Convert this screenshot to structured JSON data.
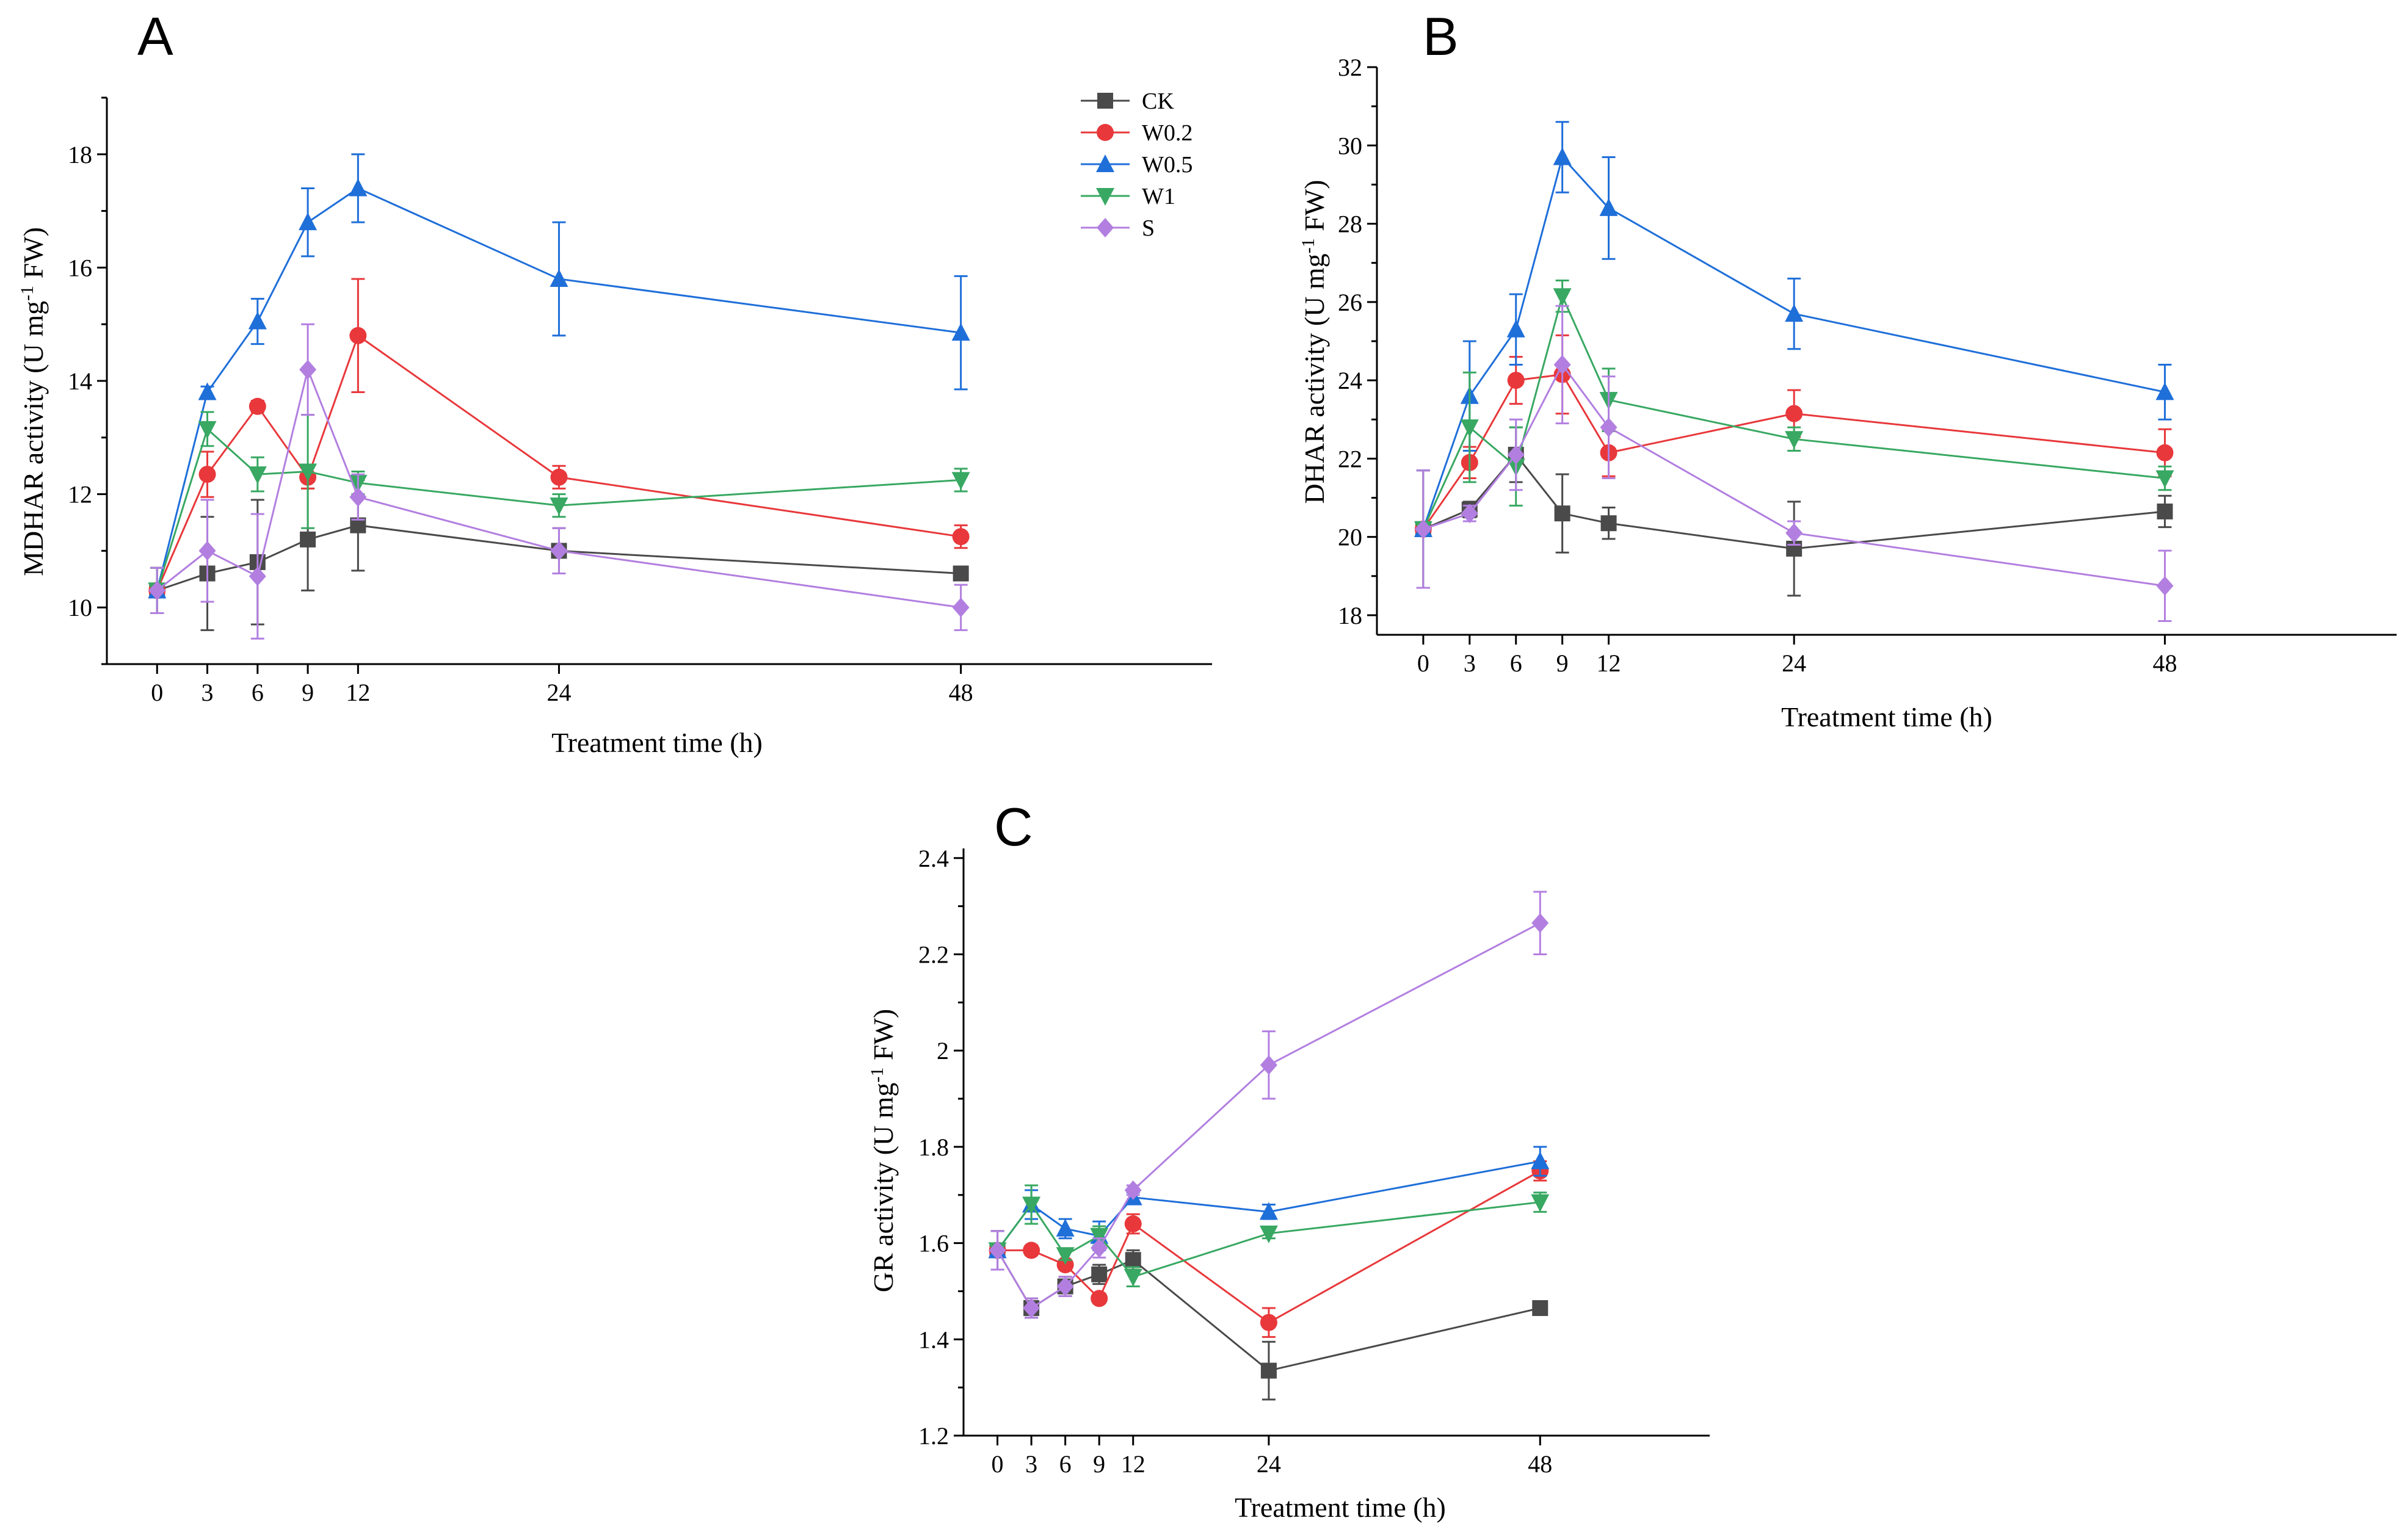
{
  "figure": {
    "series_colors": {
      "CK": "#4a4a4a",
      "W0.2": "#e8383b",
      "W0.5": "#1f6fd9",
      "W1": "#38a862",
      "S": "#b27fe0"
    },
    "legend": [
      {
        "name": "CK",
        "marker": "square"
      },
      {
        "name": "W0.2",
        "marker": "circle"
      },
      {
        "name": "W0.5",
        "marker": "triangle-up"
      },
      {
        "name": "W1",
        "marker": "triangle-down"
      },
      {
        "name": "S",
        "marker": "diamond"
      }
    ]
  },
  "chart_data": [
    {
      "panel": "A",
      "type": "line",
      "xlabel": "Treatment time (h)",
      "ylabel": "MDHAR activity (U mg-1 FW)",
      "x": [
        0,
        3,
        6,
        9,
        12,
        24,
        48
      ],
      "xticks": [
        "0",
        "3",
        "6",
        "9",
        "12",
        "24",
        "48"
      ],
      "xlim": [
        -3,
        63
      ],
      "ylim": [
        9,
        19
      ],
      "yticks": [
        10,
        12,
        14,
        16,
        18
      ],
      "series": [
        {
          "name": "CK",
          "values": [
            10.3,
            10.6,
            10.8,
            11.2,
            11.45,
            11.0,
            10.6
          ],
          "errors": [
            0.4,
            1.0,
            1.1,
            0.9,
            0.8,
            0.4,
            0.0
          ]
        },
        {
          "name": "W0.2",
          "values": [
            10.3,
            12.35,
            13.55,
            12.3,
            14.8,
            12.3,
            11.25
          ],
          "errors": [
            0.4,
            0.4,
            0.1,
            0.2,
            1.0,
            0.2,
            0.2
          ]
        },
        {
          "name": "W0.5",
          "values": [
            10.3,
            13.8,
            15.05,
            16.8,
            17.4,
            15.8,
            14.85
          ],
          "errors": [
            0.4,
            0.1,
            0.4,
            0.6,
            0.6,
            1.0,
            1.0
          ]
        },
        {
          "name": "W1",
          "values": [
            10.3,
            13.15,
            12.35,
            12.4,
            12.2,
            11.8,
            12.25
          ],
          "errors": [
            0.4,
            0.3,
            0.3,
            1.0,
            0.2,
            0.2,
            0.2
          ]
        },
        {
          "name": "S",
          "values": [
            10.3,
            11.0,
            10.55,
            14.2,
            11.95,
            11.0,
            10.0
          ],
          "errors": [
            0.4,
            0.9,
            1.1,
            0.8,
            0.4,
            0.4,
            0.4
          ]
        }
      ]
    },
    {
      "panel": "B",
      "type": "line",
      "xlabel": "Treatment time (h)",
      "ylabel": "DHAR activity (U mg-1 FW)",
      "x": [
        0,
        3,
        6,
        9,
        12,
        24,
        48
      ],
      "xticks": [
        "0",
        "3",
        "6",
        "9",
        "12",
        "24",
        "48"
      ],
      "xlim": [
        -3,
        63
      ],
      "ylim": [
        17.5,
        32
      ],
      "yticks": [
        18,
        20,
        22,
        24,
        26,
        28,
        30,
        32
      ],
      "series": [
        {
          "name": "CK",
          "values": [
            20.2,
            20.7,
            22.1,
            20.6,
            20.35,
            19.7,
            20.65
          ],
          "errors": [
            1.5,
            0.2,
            0.7,
            1.0,
            0.4,
            1.2,
            0.4
          ]
        },
        {
          "name": "W0.2",
          "values": [
            20.2,
            21.9,
            24.0,
            24.15,
            22.15,
            23.15,
            22.15
          ],
          "errors": [
            1.5,
            0.4,
            0.6,
            1.0,
            0.6,
            0.6,
            0.6
          ]
        },
        {
          "name": "W0.5",
          "values": [
            20.2,
            23.6,
            25.3,
            29.7,
            28.4,
            25.7,
            23.7
          ],
          "errors": [
            1.5,
            1.4,
            0.9,
            0.9,
            1.3,
            0.9,
            0.7
          ]
        },
        {
          "name": "W1",
          "values": [
            20.2,
            22.8,
            21.8,
            26.15,
            23.5,
            22.5,
            21.5
          ],
          "errors": [
            1.5,
            1.4,
            1.0,
            0.4,
            0.8,
            0.3,
            0.3
          ]
        },
        {
          "name": "S",
          "values": [
            20.2,
            20.6,
            22.1,
            24.4,
            22.8,
            20.1,
            18.75
          ],
          "errors": [
            1.5,
            0.2,
            0.9,
            1.5,
            1.3,
            0.3,
            0.9
          ]
        }
      ]
    },
    {
      "panel": "C",
      "type": "line",
      "xlabel": "Treatment time (h)",
      "ylabel": "GR activity (U mg-1 FW)",
      "x": [
        0,
        3,
        6,
        9,
        12,
        24,
        48
      ],
      "xticks": [
        "0",
        "3",
        "6",
        "9",
        "12",
        "24",
        "48"
      ],
      "xlim": [
        -3,
        63
      ],
      "ylim": [
        1.2,
        2.42
      ],
      "yticks": [
        1.2,
        1.4,
        1.6,
        1.8,
        2.0,
        2.2,
        2.4
      ],
      "series": [
        {
          "name": "CK",
          "values": [
            1.585,
            1.465,
            1.51,
            1.535,
            1.565,
            1.335,
            1.465
          ],
          "errors": [
            0.04,
            0.02,
            0.02,
            0.02,
            0.02,
            0.06,
            0.01
          ]
        },
        {
          "name": "W0.2",
          "values": [
            1.585,
            1.585,
            1.555,
            1.485,
            1.64,
            1.435,
            1.75
          ],
          "errors": [
            0.04,
            0.01,
            0.01,
            0.01,
            0.02,
            0.03,
            0.02
          ]
        },
        {
          "name": "W0.5",
          "values": [
            1.585,
            1.68,
            1.63,
            1.615,
            1.695,
            1.665,
            1.77
          ],
          "errors": [
            0.04,
            0.03,
            0.02,
            0.03,
            0.01,
            0.015,
            0.03
          ]
        },
        {
          "name": "W1",
          "values": [
            1.585,
            1.68,
            1.575,
            1.615,
            1.53,
            1.62,
            1.685
          ],
          "errors": [
            0.04,
            0.04,
            0.01,
            0.02,
            0.02,
            0.01,
            0.02
          ]
        },
        {
          "name": "S",
          "values": [
            1.585,
            1.465,
            1.51,
            1.59,
            1.71,
            1.97,
            2.265
          ],
          "errors": [
            0.04,
            0.02,
            0.02,
            0.02,
            0.01,
            0.07,
            0.065
          ]
        }
      ]
    }
  ]
}
